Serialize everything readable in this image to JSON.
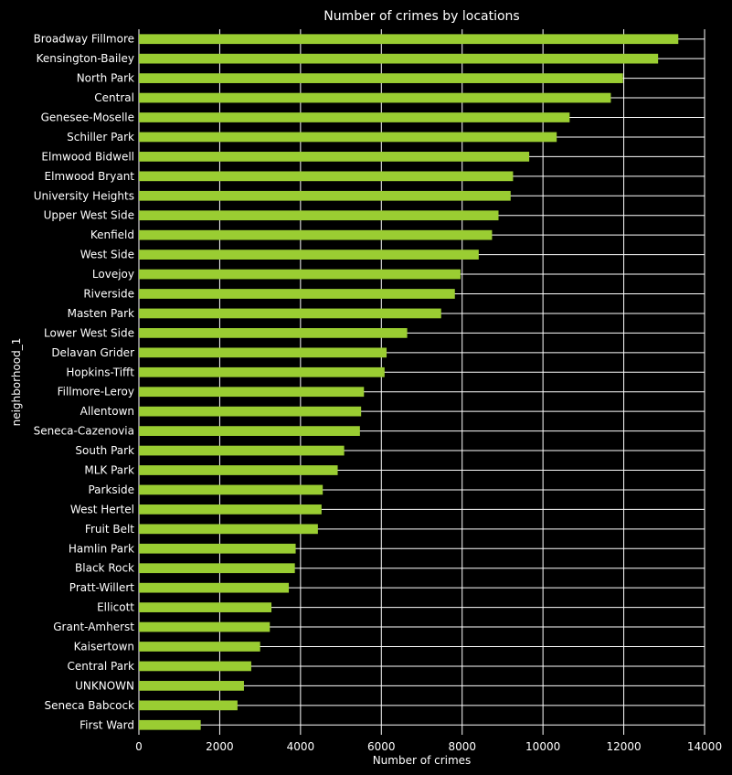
{
  "chart_data": {
    "type": "bar",
    "orientation": "horizontal",
    "title": "Number of crimes by locations",
    "xlabel": "Number of crimes",
    "ylabel": "neighborhood_1",
    "xlim": [
      0,
      14000
    ],
    "xticks": [
      0,
      2000,
      4000,
      6000,
      8000,
      10000,
      12000,
      14000
    ],
    "grid": true,
    "bar_color": "#9acd32",
    "background": "#000000",
    "categories": [
      "Broadway Fillmore",
      "Kensington-Bailey",
      "North Park",
      "Central",
      "Genesee-Moselle",
      "Schiller Park",
      "Elmwood Bidwell",
      "Elmwood Bryant",
      "University Heights",
      "Upper West Side",
      "Kenfield",
      "West Side",
      "Lovejoy",
      "Riverside",
      "Masten Park",
      "Lower West Side",
      "Delavan Grider",
      "Hopkins-Tifft",
      "Fillmore-Leroy",
      "Allentown",
      "Seneca-Cazenovia",
      "South Park",
      "MLK Park",
      "Parkside",
      "West Hertel",
      "Fruit Belt",
      "Hamlin Park",
      "Black Rock",
      "Pratt-Willert",
      "Ellicott",
      "Grant-Amherst",
      "Kaisertown",
      "Central Park",
      "UNKNOWN",
      "Seneca Babcock",
      "First Ward"
    ],
    "values": [
      13350,
      12850,
      11980,
      11680,
      10660,
      10340,
      9660,
      9260,
      9200,
      8900,
      8740,
      8410,
      7960,
      7820,
      7480,
      6640,
      6130,
      6080,
      5570,
      5500,
      5470,
      5080,
      4920,
      4550,
      4520,
      4430,
      3880,
      3860,
      3710,
      3280,
      3240,
      3000,
      2780,
      2600,
      2440,
      1530
    ]
  }
}
